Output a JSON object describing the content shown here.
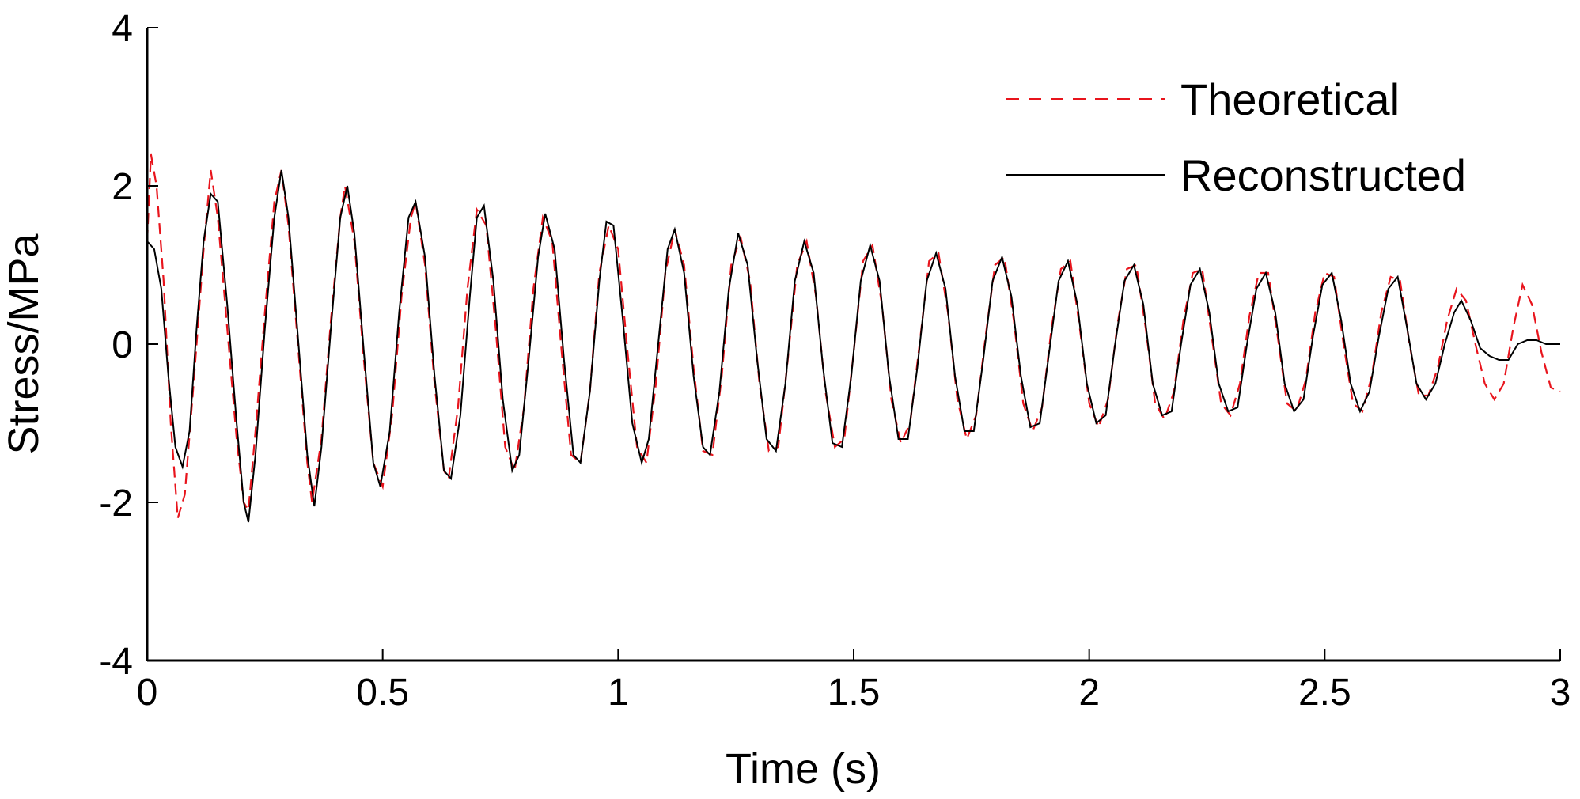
{
  "chart_data": {
    "type": "line",
    "title": "",
    "xlabel": "Time (s)",
    "ylabel": "Stress/MPa",
    "xlim": [
      0,
      3
    ],
    "ylim": [
      -4,
      4
    ],
    "x_ticks": [
      0,
      0.5,
      1,
      1.5,
      2,
      2.5,
      3
    ],
    "x_tick_labels": [
      "0",
      "0.5",
      "1",
      "1.5",
      "2",
      "2.5",
      "3"
    ],
    "y_ticks": [
      -4,
      -2,
      0,
      2,
      4
    ],
    "y_tick_labels": [
      "-4",
      "-2",
      "0",
      "2",
      "4"
    ],
    "grid": false,
    "legend_position": "top-right",
    "series": [
      {
        "name": "Theoretical",
        "color": "#e8141c",
        "style": "dashed",
        "points": [
          [
            0.0,
            1.3
          ],
          [
            0.008,
            2.4
          ],
          [
            0.02,
            2.0
          ],
          [
            0.035,
            0.8
          ],
          [
            0.05,
            -1.0
          ],
          [
            0.065,
            -2.2
          ],
          [
            0.08,
            -1.9
          ],
          [
            0.1,
            -0.4
          ],
          [
            0.12,
            1.2
          ],
          [
            0.135,
            2.2
          ],
          [
            0.15,
            1.6
          ],
          [
            0.17,
            0.2
          ],
          [
            0.19,
            -1.2
          ],
          [
            0.205,
            -2.0
          ],
          [
            0.215,
            -2.1
          ],
          [
            0.23,
            -1.1
          ],
          [
            0.25,
            0.4
          ],
          [
            0.27,
            1.8
          ],
          [
            0.285,
            2.2
          ],
          [
            0.3,
            1.5
          ],
          [
            0.32,
            0.0
          ],
          [
            0.34,
            -1.5
          ],
          [
            0.35,
            -2.0
          ],
          [
            0.37,
            -1.2
          ],
          [
            0.39,
            0.3
          ],
          [
            0.41,
            1.6
          ],
          [
            0.42,
            2.0
          ],
          [
            0.44,
            1.3
          ],
          [
            0.46,
            -0.2
          ],
          [
            0.48,
            -1.5
          ],
          [
            0.5,
            -1.8
          ],
          [
            0.52,
            -0.9
          ],
          [
            0.54,
            0.6
          ],
          [
            0.56,
            1.6
          ],
          [
            0.57,
            1.8
          ],
          [
            0.59,
            1.0
          ],
          [
            0.61,
            -0.5
          ],
          [
            0.63,
            -1.6
          ],
          [
            0.64,
            -1.7
          ],
          [
            0.66,
            -0.8
          ],
          [
            0.68,
            0.7
          ],
          [
            0.7,
            1.7
          ],
          [
            0.72,
            1.5
          ],
          [
            0.74,
            0.2
          ],
          [
            0.76,
            -1.3
          ],
          [
            0.78,
            -1.6
          ],
          [
            0.8,
            -0.8
          ],
          [
            0.82,
            0.7
          ],
          [
            0.84,
            1.6
          ],
          [
            0.86,
            1.3
          ],
          [
            0.88,
            -0.1
          ],
          [
            0.9,
            -1.4
          ],
          [
            0.92,
            -1.5
          ],
          [
            0.94,
            -0.6
          ],
          [
            0.96,
            0.9
          ],
          [
            0.98,
            1.5
          ],
          [
            1.0,
            1.2
          ],
          [
            1.02,
            -0.1
          ],
          [
            1.04,
            -1.3
          ],
          [
            1.06,
            -1.5
          ],
          [
            1.08,
            -0.5
          ],
          [
            1.1,
            0.9
          ],
          [
            1.12,
            1.45
          ],
          [
            1.14,
            1.0
          ],
          [
            1.16,
            -0.3
          ],
          [
            1.18,
            -1.35
          ],
          [
            1.2,
            -1.4
          ],
          [
            1.22,
            -0.4
          ],
          [
            1.24,
            1.0
          ],
          [
            1.26,
            1.35
          ],
          [
            1.28,
            0.8
          ],
          [
            1.3,
            -0.5
          ],
          [
            1.32,
            -1.35
          ],
          [
            1.34,
            -1.3
          ],
          [
            1.36,
            -0.2
          ],
          [
            1.38,
            1.0
          ],
          [
            1.4,
            1.3
          ],
          [
            1.42,
            0.6
          ],
          [
            1.44,
            -0.6
          ],
          [
            1.46,
            -1.3
          ],
          [
            1.48,
            -1.2
          ],
          [
            1.5,
            -0.1
          ],
          [
            1.52,
            1.05
          ],
          [
            1.54,
            1.25
          ],
          [
            1.56,
            0.5
          ],
          [
            1.58,
            -0.7
          ],
          [
            1.6,
            -1.25
          ],
          [
            1.62,
            -1.0
          ],
          [
            1.64,
            0.0
          ],
          [
            1.66,
            1.05
          ],
          [
            1.68,
            1.15
          ],
          [
            1.7,
            0.4
          ],
          [
            1.72,
            -0.7
          ],
          [
            1.74,
            -1.2
          ],
          [
            1.76,
            -0.9
          ],
          [
            1.78,
            0.1
          ],
          [
            1.8,
            1.0
          ],
          [
            1.82,
            1.1
          ],
          [
            1.84,
            0.3
          ],
          [
            1.86,
            -0.75
          ],
          [
            1.88,
            -1.1
          ],
          [
            1.9,
            -0.8
          ],
          [
            1.92,
            0.2
          ],
          [
            1.94,
            0.95
          ],
          [
            1.96,
            1.05
          ],
          [
            1.98,
            0.2
          ],
          [
            2.0,
            -0.75
          ],
          [
            2.02,
            -1.05
          ],
          [
            2.04,
            -0.7
          ],
          [
            2.06,
            0.25
          ],
          [
            2.08,
            0.95
          ],
          [
            2.1,
            1.0
          ],
          [
            2.12,
            0.2
          ],
          [
            2.14,
            -0.75
          ],
          [
            2.16,
            -0.95
          ],
          [
            2.18,
            -0.6
          ],
          [
            2.2,
            0.3
          ],
          [
            2.22,
            0.9
          ],
          [
            2.24,
            0.95
          ],
          [
            2.26,
            0.1
          ],
          [
            2.28,
            -0.75
          ],
          [
            2.3,
            -0.9
          ],
          [
            2.32,
            -0.5
          ],
          [
            2.34,
            0.35
          ],
          [
            2.36,
            0.9
          ],
          [
            2.38,
            0.9
          ],
          [
            2.4,
            0.1
          ],
          [
            2.42,
            -0.75
          ],
          [
            2.44,
            -0.85
          ],
          [
            2.46,
            -0.45
          ],
          [
            2.48,
            0.4
          ],
          [
            2.5,
            0.9
          ],
          [
            2.52,
            0.85
          ],
          [
            2.54,
            0.0
          ],
          [
            2.56,
            -0.75
          ],
          [
            2.58,
            -0.85
          ],
          [
            2.6,
            -0.4
          ],
          [
            2.62,
            0.4
          ],
          [
            2.64,
            0.85
          ],
          [
            2.66,
            0.8
          ],
          [
            2.68,
            0.0
          ],
          [
            2.7,
            -0.65
          ],
          [
            2.72,
            -0.65
          ],
          [
            2.74,
            -0.3
          ],
          [
            2.76,
            0.3
          ],
          [
            2.78,
            0.7
          ],
          [
            2.8,
            0.55
          ],
          [
            2.82,
            0.0
          ],
          [
            2.84,
            -0.5
          ],
          [
            2.86,
            -0.7
          ],
          [
            2.88,
            -0.5
          ],
          [
            2.9,
            0.2
          ],
          [
            2.92,
            0.75
          ],
          [
            2.94,
            0.5
          ],
          [
            2.96,
            -0.1
          ],
          [
            2.98,
            -0.55
          ],
          [
            3.0,
            -0.6
          ]
        ]
      },
      {
        "name": "Reconstructed",
        "color": "#000000",
        "style": "solid",
        "points": [
          [
            0.0,
            1.3
          ],
          [
            0.015,
            1.2
          ],
          [
            0.03,
            0.7
          ],
          [
            0.045,
            -0.4
          ],
          [
            0.06,
            -1.3
          ],
          [
            0.075,
            -1.55
          ],
          [
            0.09,
            -1.1
          ],
          [
            0.105,
            0.2
          ],
          [
            0.12,
            1.3
          ],
          [
            0.135,
            1.9
          ],
          [
            0.15,
            1.8
          ],
          [
            0.17,
            0.5
          ],
          [
            0.19,
            -1.0
          ],
          [
            0.205,
            -2.0
          ],
          [
            0.215,
            -2.25
          ],
          [
            0.23,
            -1.4
          ],
          [
            0.25,
            0.2
          ],
          [
            0.27,
            1.6
          ],
          [
            0.285,
            2.2
          ],
          [
            0.3,
            1.6
          ],
          [
            0.32,
            0.1
          ],
          [
            0.34,
            -1.4
          ],
          [
            0.355,
            -2.05
          ],
          [
            0.37,
            -1.3
          ],
          [
            0.39,
            0.2
          ],
          [
            0.41,
            1.6
          ],
          [
            0.425,
            2.0
          ],
          [
            0.44,
            1.4
          ],
          [
            0.46,
            -0.1
          ],
          [
            0.48,
            -1.5
          ],
          [
            0.495,
            -1.8
          ],
          [
            0.515,
            -1.1
          ],
          [
            0.535,
            0.4
          ],
          [
            0.555,
            1.6
          ],
          [
            0.57,
            1.8
          ],
          [
            0.59,
            1.1
          ],
          [
            0.61,
            -0.4
          ],
          [
            0.63,
            -1.6
          ],
          [
            0.645,
            -1.7
          ],
          [
            0.665,
            -0.9
          ],
          [
            0.685,
            0.6
          ],
          [
            0.7,
            1.6
          ],
          [
            0.715,
            1.75
          ],
          [
            0.735,
            0.8
          ],
          [
            0.755,
            -0.7
          ],
          [
            0.775,
            -1.6
          ],
          [
            0.79,
            -1.4
          ],
          [
            0.81,
            -0.2
          ],
          [
            0.83,
            1.1
          ],
          [
            0.845,
            1.65
          ],
          [
            0.865,
            1.2
          ],
          [
            0.885,
            -0.2
          ],
          [
            0.905,
            -1.4
          ],
          [
            0.92,
            -1.5
          ],
          [
            0.94,
            -0.6
          ],
          [
            0.96,
            0.8
          ],
          [
            0.975,
            1.55
          ],
          [
            0.99,
            1.5
          ],
          [
            1.01,
            0.3
          ],
          [
            1.03,
            -1.0
          ],
          [
            1.05,
            -1.5
          ],
          [
            1.065,
            -1.2
          ],
          [
            1.085,
            0.0
          ],
          [
            1.105,
            1.2
          ],
          [
            1.12,
            1.45
          ],
          [
            1.14,
            0.9
          ],
          [
            1.16,
            -0.4
          ],
          [
            1.18,
            -1.3
          ],
          [
            1.195,
            -1.4
          ],
          [
            1.215,
            -0.6
          ],
          [
            1.235,
            0.7
          ],
          [
            1.255,
            1.4
          ],
          [
            1.275,
            1.0
          ],
          [
            1.295,
            -0.2
          ],
          [
            1.315,
            -1.2
          ],
          [
            1.335,
            -1.35
          ],
          [
            1.355,
            -0.5
          ],
          [
            1.375,
            0.8
          ],
          [
            1.395,
            1.3
          ],
          [
            1.415,
            0.9
          ],
          [
            1.435,
            -0.3
          ],
          [
            1.455,
            -1.25
          ],
          [
            1.475,
            -1.3
          ],
          [
            1.495,
            -0.4
          ],
          [
            1.515,
            0.8
          ],
          [
            1.535,
            1.25
          ],
          [
            1.555,
            0.8
          ],
          [
            1.575,
            -0.4
          ],
          [
            1.595,
            -1.2
          ],
          [
            1.615,
            -1.2
          ],
          [
            1.635,
            -0.3
          ],
          [
            1.655,
            0.8
          ],
          [
            1.675,
            1.15
          ],
          [
            1.695,
            0.7
          ],
          [
            1.715,
            -0.4
          ],
          [
            1.735,
            -1.1
          ],
          [
            1.755,
            -1.1
          ],
          [
            1.775,
            -0.2
          ],
          [
            1.795,
            0.8
          ],
          [
            1.815,
            1.1
          ],
          [
            1.835,
            0.6
          ],
          [
            1.855,
            -0.4
          ],
          [
            1.875,
            -1.05
          ],
          [
            1.895,
            -1.0
          ],
          [
            1.915,
            -0.1
          ],
          [
            1.935,
            0.8
          ],
          [
            1.955,
            1.05
          ],
          [
            1.975,
            0.5
          ],
          [
            1.995,
            -0.5
          ],
          [
            2.015,
            -1.0
          ],
          [
            2.035,
            -0.9
          ],
          [
            2.055,
            0.0
          ],
          [
            2.075,
            0.8
          ],
          [
            2.095,
            1.0
          ],
          [
            2.115,
            0.5
          ],
          [
            2.135,
            -0.5
          ],
          [
            2.155,
            -0.9
          ],
          [
            2.175,
            -0.85
          ],
          [
            2.195,
            0.0
          ],
          [
            2.215,
            0.75
          ],
          [
            2.235,
            0.95
          ],
          [
            2.255,
            0.4
          ],
          [
            2.275,
            -0.5
          ],
          [
            2.295,
            -0.85
          ],
          [
            2.315,
            -0.8
          ],
          [
            2.335,
            0.0
          ],
          [
            2.355,
            0.7
          ],
          [
            2.375,
            0.9
          ],
          [
            2.395,
            0.4
          ],
          [
            2.415,
            -0.5
          ],
          [
            2.435,
            -0.85
          ],
          [
            2.455,
            -0.7
          ],
          [
            2.475,
            0.1
          ],
          [
            2.495,
            0.75
          ],
          [
            2.515,
            0.9
          ],
          [
            2.535,
            0.3
          ],
          [
            2.555,
            -0.5
          ],
          [
            2.575,
            -0.85
          ],
          [
            2.595,
            -0.6
          ],
          [
            2.615,
            0.1
          ],
          [
            2.635,
            0.7
          ],
          [
            2.655,
            0.85
          ],
          [
            2.675,
            0.2
          ],
          [
            2.695,
            -0.5
          ],
          [
            2.715,
            -0.7
          ],
          [
            2.735,
            -0.5
          ],
          [
            2.755,
            0.0
          ],
          [
            2.775,
            0.4
          ],
          [
            2.79,
            0.55
          ],
          [
            2.81,
            0.3
          ],
          [
            2.83,
            -0.05
          ],
          [
            2.85,
            -0.15
          ],
          [
            2.87,
            -0.2
          ],
          [
            2.89,
            -0.2
          ],
          [
            2.91,
            0.0
          ],
          [
            2.93,
            0.05
          ],
          [
            2.95,
            0.05
          ],
          [
            2.97,
            0.0
          ],
          [
            3.0,
            0.0
          ]
        ]
      }
    ]
  }
}
